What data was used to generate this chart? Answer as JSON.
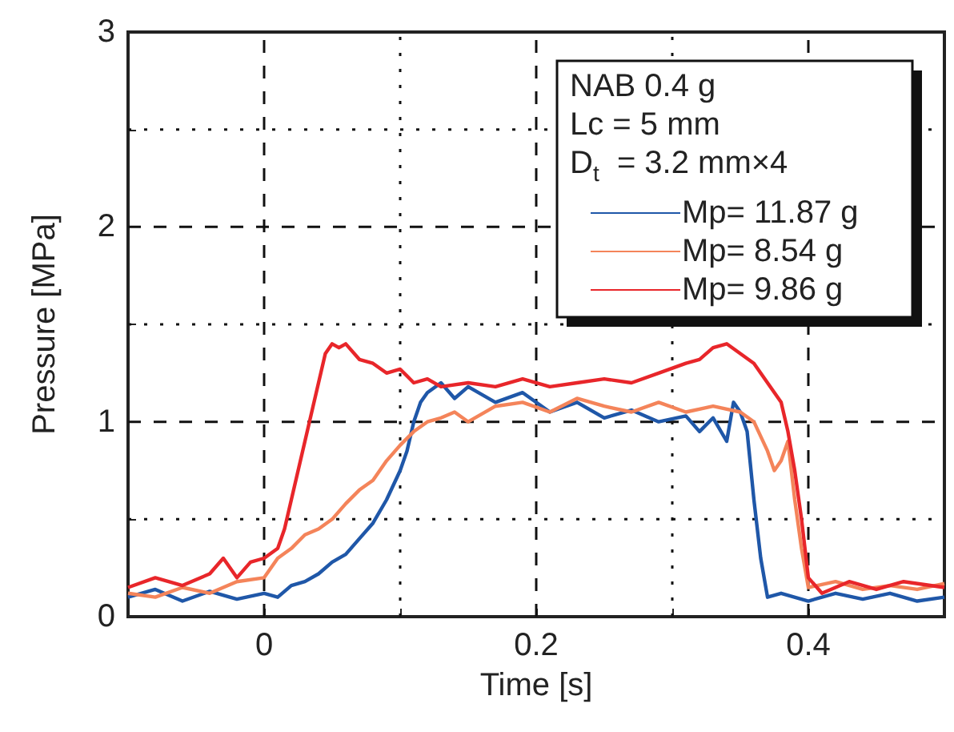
{
  "chart_data": {
    "type": "line",
    "xlabel": "Time [s]",
    "ylabel": "Pressure [MPa]",
    "xlim": [
      -0.1,
      0.5
    ],
    "ylim": [
      0,
      3
    ],
    "xticks": [
      {
        "value": -0.1,
        "label": null
      },
      0,
      {
        "value": 0.1,
        "label": null
      },
      0.2,
      {
        "value": 0.3,
        "label": null
      },
      0.4,
      {
        "value": 0.5,
        "label": null
      }
    ],
    "yticks": [
      0,
      {
        "value": 0.5,
        "label": null
      },
      1,
      {
        "value": 1.5,
        "label": null
      },
      2,
      {
        "value": 2.5,
        "label": null
      },
      3
    ],
    "grid": true,
    "legend": "top right",
    "annotations": [
      "NAB 0.4 g",
      "Lc = 5 mm",
      "D$_{t}$  = 3.2 mm×4"
    ],
    "series": [
      {
        "name": "Mp= 11.87 g",
        "color": "#1f57a8",
        "x": [
          -0.1,
          -0.08,
          -0.06,
          -0.04,
          -0.02,
          0,
          0.01,
          0.02,
          0.03,
          0.04,
          0.05,
          0.06,
          0.07,
          0.08,
          0.09,
          0.1,
          0.105,
          0.11,
          0.115,
          0.12,
          0.13,
          0.14,
          0.15,
          0.17,
          0.19,
          0.21,
          0.23,
          0.25,
          0.27,
          0.29,
          0.31,
          0.32,
          0.33,
          0.34,
          0.345,
          0.35,
          0.355,
          0.36,
          0.365,
          0.37,
          0.38,
          0.4,
          0.42,
          0.44,
          0.46,
          0.48,
          0.5
        ],
        "values": [
          0.1,
          0.14,
          0.08,
          0.13,
          0.09,
          0.12,
          0.1,
          0.16,
          0.18,
          0.22,
          0.28,
          0.32,
          0.4,
          0.48,
          0.6,
          0.75,
          0.85,
          1.0,
          1.1,
          1.15,
          1.2,
          1.12,
          1.18,
          1.1,
          1.15,
          1.05,
          1.1,
          1.02,
          1.06,
          1.0,
          1.03,
          0.95,
          1.02,
          0.9,
          1.1,
          1.05,
          0.95,
          0.6,
          0.3,
          0.1,
          0.12,
          0.08,
          0.12,
          0.09,
          0.12,
          0.08,
          0.1
        ]
      },
      {
        "name": "Mp= 8.54 g",
        "color": "#f4845a",
        "x": [
          -0.1,
          -0.08,
          -0.06,
          -0.04,
          -0.02,
          0,
          0.01,
          0.02,
          0.03,
          0.04,
          0.05,
          0.06,
          0.07,
          0.08,
          0.09,
          0.1,
          0.11,
          0.12,
          0.13,
          0.14,
          0.15,
          0.17,
          0.19,
          0.21,
          0.23,
          0.25,
          0.27,
          0.29,
          0.31,
          0.33,
          0.35,
          0.36,
          0.37,
          0.375,
          0.38,
          0.385,
          0.39,
          0.395,
          0.4,
          0.42,
          0.44,
          0.46,
          0.48,
          0.5
        ],
        "values": [
          0.12,
          0.1,
          0.15,
          0.12,
          0.18,
          0.2,
          0.3,
          0.35,
          0.42,
          0.45,
          0.5,
          0.58,
          0.65,
          0.7,
          0.8,
          0.88,
          0.95,
          1.0,
          1.02,
          1.05,
          1.0,
          1.08,
          1.1,
          1.05,
          1.12,
          1.08,
          1.05,
          1.1,
          1.05,
          1.08,
          1.05,
          1.0,
          0.85,
          0.75,
          0.8,
          0.9,
          0.6,
          0.35,
          0.15,
          0.18,
          0.14,
          0.16,
          0.14,
          0.17
        ]
      },
      {
        "name": "Mp= 9.86 g",
        "color": "#e8262a",
        "x": [
          -0.1,
          -0.08,
          -0.06,
          -0.04,
          -0.03,
          -0.02,
          -0.01,
          0,
          0.01,
          0.015,
          0.02,
          0.025,
          0.03,
          0.035,
          0.04,
          0.045,
          0.05,
          0.055,
          0.06,
          0.07,
          0.08,
          0.09,
          0.1,
          0.11,
          0.12,
          0.13,
          0.15,
          0.17,
          0.19,
          0.21,
          0.23,
          0.25,
          0.27,
          0.29,
          0.31,
          0.32,
          0.33,
          0.34,
          0.35,
          0.36,
          0.37,
          0.38,
          0.385,
          0.39,
          0.395,
          0.4,
          0.41,
          0.43,
          0.45,
          0.47,
          0.5
        ],
        "values": [
          0.15,
          0.2,
          0.16,
          0.22,
          0.3,
          0.2,
          0.28,
          0.3,
          0.35,
          0.45,
          0.6,
          0.75,
          0.9,
          1.05,
          1.2,
          1.35,
          1.4,
          1.38,
          1.4,
          1.32,
          1.3,
          1.25,
          1.27,
          1.2,
          1.22,
          1.18,
          1.2,
          1.18,
          1.22,
          1.18,
          1.2,
          1.22,
          1.2,
          1.25,
          1.3,
          1.32,
          1.38,
          1.4,
          1.35,
          1.3,
          1.2,
          1.1,
          0.95,
          0.75,
          0.5,
          0.2,
          0.12,
          0.18,
          0.14,
          0.18,
          0.15
        ]
      }
    ]
  }
}
